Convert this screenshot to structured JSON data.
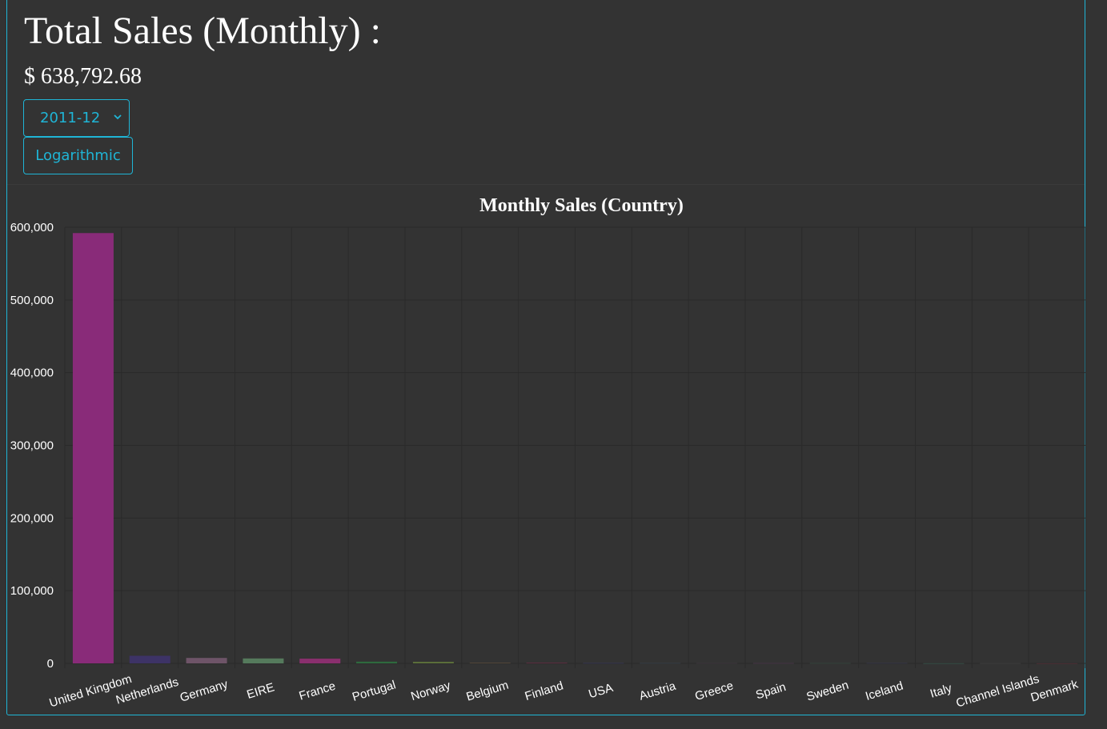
{
  "header": {
    "title": "Total Sales (Monthly) :",
    "total": "$ 638,792.68"
  },
  "controls": {
    "month_selected": "2011-12",
    "scale_label": "Logarithmic"
  },
  "colors": {
    "accent": "#1fb5d6",
    "background": "#333333"
  },
  "chart_data": {
    "type": "bar",
    "title": "Monthly Sales (Country)",
    "xlabel": "",
    "ylabel": "",
    "ylim": [
      0,
      600000
    ],
    "yticks": [
      0,
      100000,
      200000,
      300000,
      400000,
      500000,
      600000
    ],
    "ytick_labels": [
      "0",
      "100,000",
      "200,000",
      "300,000",
      "400,000",
      "500,000",
      "600,000"
    ],
    "grid": true,
    "legend": "none",
    "categories": [
      "United Kingdom",
      "Netherlands",
      "Germany",
      "EIRE",
      "France",
      "Portugal",
      "Norway",
      "Belgium",
      "Finland",
      "USA",
      "Austria",
      "Greece",
      "Spain",
      "Sweden",
      "Iceland",
      "Italy",
      "Channel Islands",
      "Denmark"
    ],
    "values": [
      592000,
      10500,
      7500,
      6800,
      6500,
      2400,
      2200,
      900,
      650,
      400,
      380,
      350,
      300,
      320,
      400,
      150,
      250,
      100
    ],
    "colors": [
      "#892b79",
      "#3d3366",
      "#6e5468",
      "#557a5c",
      "#8a2f6e",
      "#2e6a3e",
      "#5b6e3a",
      "#5a4a3a",
      "#7a2a4a",
      "#3a3a6a",
      "#3a4a5a",
      "#4a3a4a",
      "#5a3a5a",
      "#3a5a4a",
      "#3a3a5a",
      "#3a6a5a",
      "#4a4a4a",
      "#6a2a3a"
    ]
  }
}
